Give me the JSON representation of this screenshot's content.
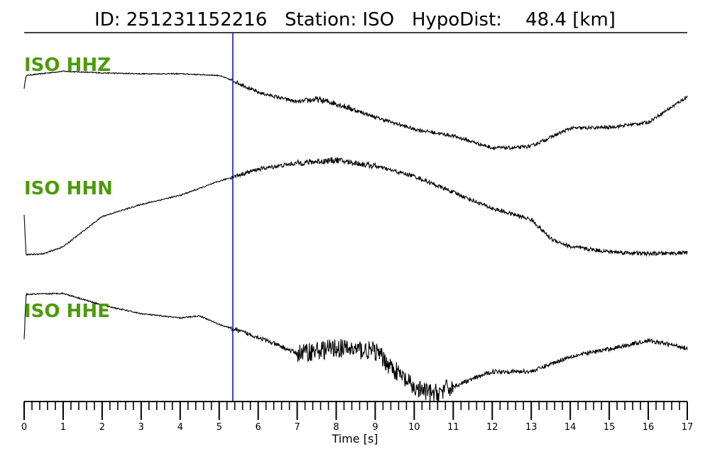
{
  "chart_data": {
    "type": "line",
    "title": "ID: 251231152216   Station: ISO   HypoDist:    48.4 [km]",
    "xlabel": "Time [s]",
    "ylabel": "",
    "xlim": [
      0,
      17
    ],
    "x_ticks": [
      0,
      1,
      2,
      3,
      4,
      5,
      6,
      7,
      8,
      9,
      10,
      11,
      12,
      13,
      14,
      15,
      16,
      17
    ],
    "minor_tick_step": 0.2,
    "grid": false,
    "legend": "none",
    "pick_line": {
      "x": 5.35,
      "color": "#0000cc"
    },
    "trace_color": "#000000",
    "label_color": "#4c9a0a",
    "series": [
      {
        "name": "ISO HHZ",
        "relative_y": [
          0,
          1
        ],
        "noise_onset": 5.3,
        "envelope": [
          [
            0,
            0.78
          ],
          [
            0.05,
            0.93
          ],
          [
            1,
            0.98
          ],
          [
            2,
            0.96
          ],
          [
            3,
            0.95
          ],
          [
            4,
            0.95
          ],
          [
            5,
            0.93
          ],
          [
            5.4,
            0.86
          ],
          [
            6,
            0.73
          ],
          [
            7,
            0.62
          ],
          [
            7.5,
            0.65
          ],
          [
            8,
            0.6
          ],
          [
            9,
            0.44
          ],
          [
            10,
            0.3
          ],
          [
            11,
            0.22
          ],
          [
            12,
            0.08
          ],
          [
            12.6,
            0.08
          ],
          [
            13,
            0.1
          ],
          [
            14,
            0.31
          ],
          [
            15,
            0.32
          ],
          [
            16,
            0.38
          ],
          [
            17,
            0.68
          ]
        ]
      },
      {
        "name": "ISO HHN",
        "relative_y": [
          0,
          1
        ],
        "noise_onset": 5.3,
        "envelope": [
          [
            0,
            0.42
          ],
          [
            0.05,
            0.02
          ],
          [
            0.5,
            0.03
          ],
          [
            1,
            0.1
          ],
          [
            2,
            0.4
          ],
          [
            3,
            0.52
          ],
          [
            4,
            0.61
          ],
          [
            5,
            0.75
          ],
          [
            6,
            0.87
          ],
          [
            7,
            0.93
          ],
          [
            8,
            0.96
          ],
          [
            9,
            0.9
          ],
          [
            10,
            0.8
          ],
          [
            11,
            0.64
          ],
          [
            12,
            0.48
          ],
          [
            13,
            0.37
          ],
          [
            13.5,
            0.18
          ],
          [
            14,
            0.1
          ],
          [
            15,
            0.05
          ],
          [
            16,
            0.03
          ],
          [
            17,
            0.04
          ]
        ]
      },
      {
        "name": "ISO HHE",
        "relative_y": [
          0,
          1
        ],
        "noise_onset": 5.3,
        "envelope": [
          [
            0,
            0.56
          ],
          [
            0.05,
            0.98
          ],
          [
            1,
            0.99
          ],
          [
            2,
            0.88
          ],
          [
            3,
            0.8
          ],
          [
            4,
            0.76
          ],
          [
            4.5,
            0.78
          ],
          [
            5,
            0.7
          ],
          [
            6,
            0.58
          ],
          [
            7,
            0.43
          ],
          [
            8,
            0.48
          ],
          [
            9,
            0.45
          ],
          [
            10,
            0.1
          ],
          [
            10.5,
            0.05
          ],
          [
            11,
            0.12
          ],
          [
            12,
            0.26
          ],
          [
            13,
            0.26
          ],
          [
            14,
            0.4
          ],
          [
            15,
            0.47
          ],
          [
            16,
            0.55
          ],
          [
            17,
            0.48
          ]
        ]
      }
    ]
  }
}
